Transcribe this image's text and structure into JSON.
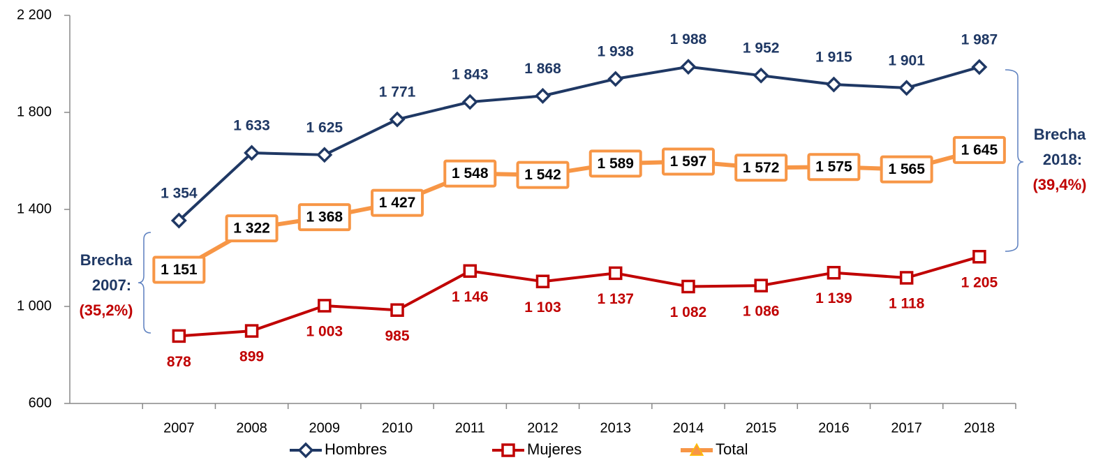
{
  "chart_data": {
    "type": "line",
    "categories": [
      null,
      "2007",
      "2008",
      "2009",
      "2010",
      "2011",
      "2012",
      "2013",
      "2014",
      "2015",
      "2016",
      "2017",
      "2018"
    ],
    "series": [
      {
        "name": "Hombres",
        "color": "#1f3864",
        "marker": "diamond",
        "label_position": "above",
        "values": [
          null,
          1354,
          1633,
          1625,
          1771,
          1843,
          1868,
          1938,
          1988,
          1952,
          1915,
          1901,
          1987
        ],
        "value_labels": [
          null,
          "1 354",
          "1 633",
          "1 625",
          "1 771",
          "1 843",
          "1 868",
          "1 938",
          "1 988",
          "1 952",
          "1 915",
          "1 901",
          "1 987"
        ]
      },
      {
        "name": "Mujeres",
        "color": "#c00000",
        "marker": "square",
        "label_position": "below",
        "values": [
          null,
          878,
          899,
          1003,
          985,
          1146,
          1103,
          1137,
          1082,
          1086,
          1139,
          1118,
          1205
        ],
        "value_labels": [
          null,
          "878",
          "899",
          "1 003",
          "985",
          "1 146",
          "1 103",
          "1 137",
          "1 082",
          "1 086",
          "1 139",
          "1 118",
          "1 205"
        ]
      },
      {
        "name": "Total",
        "color": "#f79646",
        "marker": "triangle",
        "label_position": "box",
        "values": [
          null,
          1151,
          1322,
          1368,
          1427,
          1548,
          1542,
          1589,
          1597,
          1572,
          1575,
          1565,
          1645
        ],
        "value_labels": [
          null,
          "1 151",
          "1 322",
          "1 368",
          "1 427",
          "1 548",
          "1 542",
          "1 589",
          "1 597",
          "1 572",
          "1 575",
          "1 565",
          "1 645"
        ]
      }
    ],
    "ylim": [
      600,
      2200
    ],
    "yticks": [
      600,
      {
        "value": 1000,
        "label": "1 000"
      },
      {
        "value": 1400,
        "label": "1 400"
      },
      {
        "value": 1800,
        "label": "1 800"
      },
      {
        "value": 2200,
        "label": "2 200"
      }
    ],
    "grid": false,
    "legend": "bottom",
    "annotations": [
      {
        "line1": "Brecha",
        "line2": "2007:",
        "value": "(35,2%)"
      },
      {
        "line1": "Brecha",
        "line2": "2018:",
        "value": "(39,4%)"
      }
    ]
  }
}
